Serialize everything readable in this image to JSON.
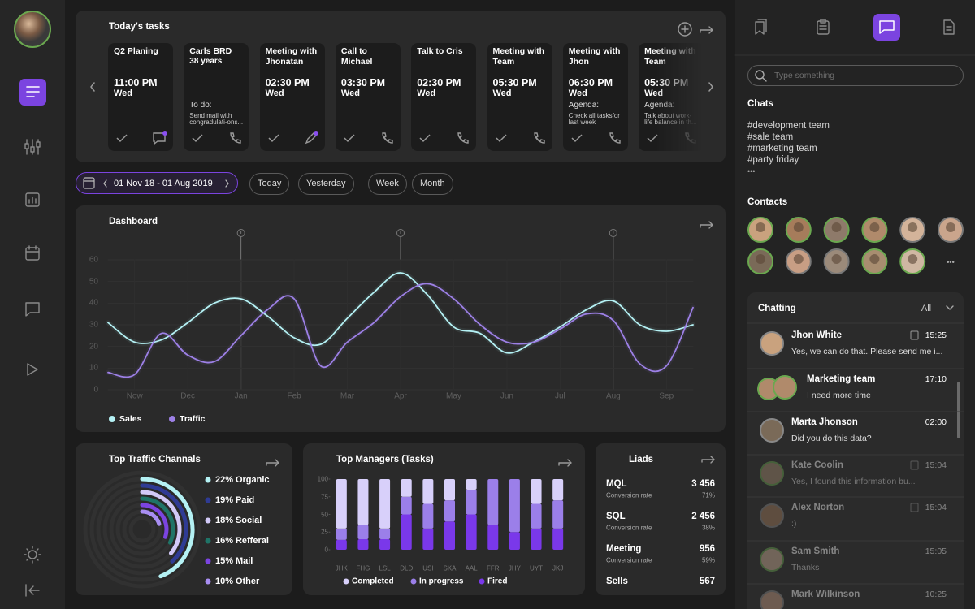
{
  "tasks": {
    "title": "Today's tasks",
    "items": [
      {
        "title": "Q2 Planing",
        "time": "11:00 PM",
        "day": "Wed"
      },
      {
        "title": "Carls BRD",
        "subtitle": "38 years",
        "note_label": "To do:",
        "note": "Send mail with congradulati-ons..."
      },
      {
        "title": "Meeting with Jhonatan",
        "time": "02:30 PM",
        "day": "Wed"
      },
      {
        "title": "Call to Michael",
        "time": "03:30 PM",
        "day": "Wed"
      },
      {
        "title": "Talk to Cris",
        "time": "02:30 PM",
        "day": "Wed"
      },
      {
        "title": "Meeting with Team",
        "time": "05:30 PM",
        "day": "Wed"
      },
      {
        "title": "Meeting with Jhon",
        "time": "06:30 PM",
        "day": "Wed",
        "note_label": "Agenda:",
        "note": "Check all tasksfor last week"
      },
      {
        "title": "Meeting with Team",
        "time": "05:30 PM",
        "day": "Wed",
        "note_label": "Agenda:",
        "note": "Talk about work-life balance in th..."
      }
    ]
  },
  "filters": {
    "date_range": "01 Nov 18 - 01 Aug 2019",
    "buttons": [
      "Today",
      "Yesterday",
      "Week",
      "Month"
    ]
  },
  "chart_data": [
    {
      "type": "line",
      "title": "Dashboard",
      "categories": [
        null,
        "Now",
        null,
        "Dec",
        null,
        "Jan",
        null,
        "Feb",
        null,
        "Mar",
        null,
        "Apr",
        null,
        "May",
        null,
        "Jun",
        null,
        "Jul",
        null,
        "Aug",
        null,
        "Sep",
        null
      ],
      "series": [
        {
          "name": "Sales",
          "color": "#b4f1f4",
          "values": [
            31,
            22,
            23,
            31,
            40,
            42,
            34,
            24,
            21,
            33,
            45,
            54,
            44,
            29,
            26,
            17,
            22,
            29,
            37,
            41,
            30,
            27,
            30
          ]
        },
        {
          "name": "Traffic",
          "color": "#9d80e6",
          "values": [
            8,
            7,
            26,
            16,
            13,
            25,
            37,
            42,
            11,
            22,
            31,
            43,
            49,
            42,
            30,
            22,
            22,
            28,
            35,
            32,
            12,
            11,
            38
          ]
        }
      ],
      "ylim": [
        0,
        60
      ],
      "yticks": [
        0,
        10,
        20,
        30,
        40,
        50,
        60
      ],
      "grid": true
    },
    {
      "type": "radialbar",
      "title": "Top Traffic Channals",
      "categories": [
        "Organic",
        "Paid",
        "Social",
        "Refferal",
        "Mail",
        "Other"
      ],
      "values": [
        22,
        19,
        18,
        16,
        15,
        10
      ],
      "value_labels": [
        "22%",
        "19%",
        "18%",
        "16%",
        "15%",
        "10%"
      ],
      "colors": [
        "#b4f1f4",
        "#2f3b94",
        "#d2c9f7",
        "#1f7467",
        "#7b44e0",
        "#a88ef2"
      ]
    },
    {
      "type": "bar",
      "stacked": true,
      "title": "Top Managers (Tasks)",
      "categories": [
        "JHK",
        "FHG",
        "LSL",
        "DLD",
        "USI",
        "SKA",
        "AAL",
        "FFR",
        "JHY",
        "UYT",
        "JKJ"
      ],
      "series": [
        {
          "name": "Completed",
          "color": "#d8d0fa",
          "values": [
            70,
            65,
            70,
            25,
            35,
            30,
            15,
            0,
            0,
            35,
            30
          ]
        },
        {
          "name": "In progress",
          "color": "#9b7fe9",
          "values": [
            16,
            20,
            15,
            25,
            35,
            30,
            35,
            65,
            75,
            35,
            40
          ]
        },
        {
          "name": "Fired",
          "color": "#7a38ea",
          "values": [
            14,
            15,
            15,
            50,
            30,
            40,
            50,
            35,
            25,
            30,
            30
          ]
        }
      ],
      "ylim": [
        0,
        100
      ],
      "yticks": [
        0,
        25,
        50,
        75,
        100
      ]
    }
  ],
  "liads": {
    "title": "Liads",
    "rows": [
      {
        "label": "MQL",
        "value": "3 456",
        "sub": "Conversion rate",
        "rate": "71%"
      },
      {
        "label": "SQL",
        "value": "2 456",
        "sub": "Conversion rate",
        "rate": "38%"
      },
      {
        "label": "Meeting",
        "value": "956",
        "sub": "Conversion rate",
        "rate": "59%"
      },
      {
        "label": "Sells",
        "value": "567"
      }
    ]
  },
  "search": {
    "placeholder": "Type something"
  },
  "chats": {
    "title": "Chats",
    "items": [
      "#development team",
      "#sale team",
      "#marketing team",
      "#party friday"
    ],
    "more": "•••"
  },
  "contacts": {
    "title": "Contacts",
    "more": "•••"
  },
  "chatting": {
    "title": "Chatting",
    "filter": "All",
    "messages": [
      {
        "name": "Jhon White",
        "time": "15:25",
        "text": "Yes, we can do that. Please send me i..."
      },
      {
        "name": "Marketing team",
        "time": "17:10",
        "text": "I need more time"
      },
      {
        "name": "Marta Jhonson",
        "time": "02:00",
        "text": "Did you do this data?"
      },
      {
        "name": "Kate Coolin",
        "time": "15:04",
        "text": "Yes, I found this information bu..."
      },
      {
        "name": "Alex Norton",
        "time": "15:04",
        "text": ":)"
      },
      {
        "name": "Sam Smith",
        "time": "15:05",
        "text": "Thanks"
      },
      {
        "name": "Mark Wilkinson",
        "time": "10:25"
      }
    ]
  }
}
